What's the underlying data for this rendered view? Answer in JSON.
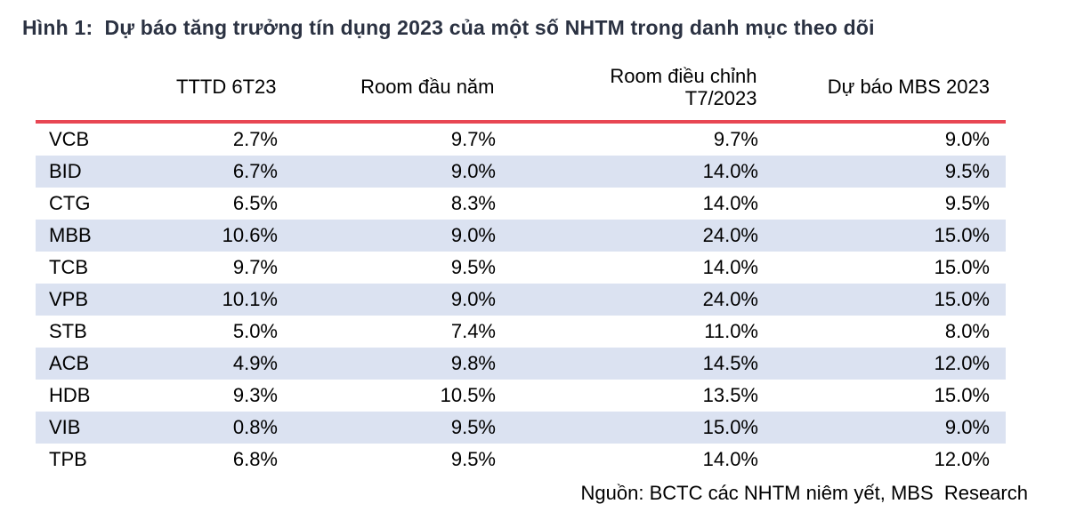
{
  "figure": {
    "title": "Hình 1:  Dự báo tăng trưởng tín dụng 2023 của một số NHTM trong danh mục theo dõi",
    "source_note": "Nguồn: BCTC các NHTM niêm yết, MBS  Research"
  },
  "chart_data": {
    "type": "table",
    "title": "Hình 1:  Dự báo tăng trưởng tín dụng 2023 của một số NHTM trong danh mục theo dõi",
    "columns": [
      "",
      "TTTD 6T23",
      "Room đầu năm",
      "Room điều chỉnh T7/2023",
      "Dự báo MBS 2023"
    ],
    "rows": [
      [
        "VCB",
        "2.7%",
        "9.7%",
        "9.7%",
        "9.0%"
      ],
      [
        "BID",
        "6.7%",
        "9.0%",
        "14.0%",
        "9.5%"
      ],
      [
        "CTG",
        "6.5%",
        "8.3%",
        "14.0%",
        "9.5%"
      ],
      [
        "MBB",
        "10.6%",
        "9.0%",
        "24.0%",
        "15.0%"
      ],
      [
        "TCB",
        "9.7%",
        "9.5%",
        "14.0%",
        "15.0%"
      ],
      [
        "VPB",
        "10.1%",
        "9.0%",
        "24.0%",
        "15.0%"
      ],
      [
        "STB",
        "5.0%",
        "7.4%",
        "11.0%",
        "8.0%"
      ],
      [
        "ACB",
        "4.9%",
        "9.8%",
        "14.5%",
        "12.0%"
      ],
      [
        "HDB",
        "9.3%",
        "10.5%",
        "13.5%",
        "15.0%"
      ],
      [
        "VIB",
        "0.8%",
        "9.5%",
        "15.0%",
        "9.0%"
      ],
      [
        "TPB",
        "6.8%",
        "9.5%",
        "14.0%",
        "12.0%"
      ]
    ],
    "units": "%",
    "source": "Nguồn: BCTC các NHTM niêm yết, MBS  Research",
    "layout": {
      "striped_rows": "even",
      "legend": "none",
      "grid": "off"
    }
  },
  "colors": {
    "accent_red": "#e84653",
    "row_stripe": "#dbe2f1",
    "title_text": "#2b3242",
    "body_text": "#000000",
    "background": "#ffffff"
  }
}
